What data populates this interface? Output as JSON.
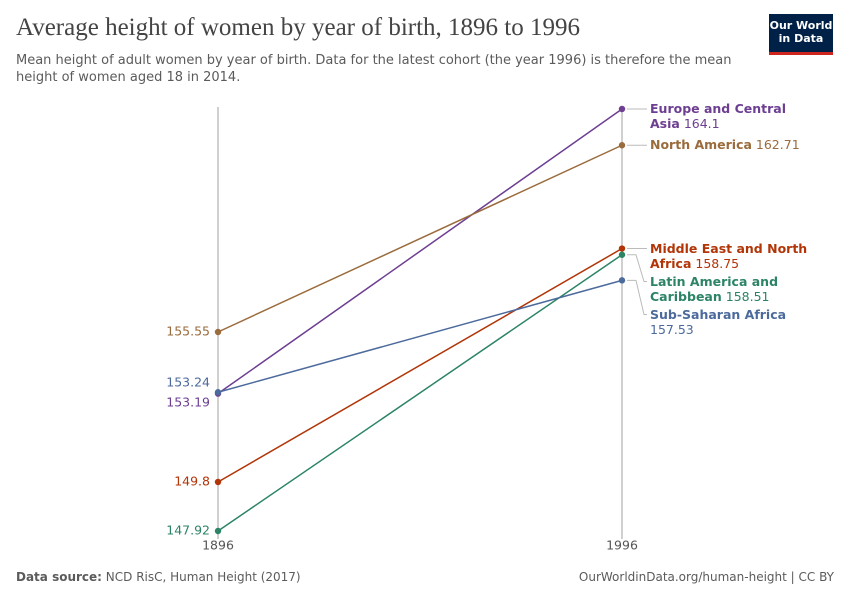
{
  "chart_data": {
    "type": "slope",
    "title": "Average height of women by year of birth, 1896 to 1996",
    "subtitle": "Mean height of adult women by year of birth. Data for the latest cohort (the year 1996) is therefore the mean height of women aged 18 in 2014.",
    "logo": [
      "Our World",
      "in Data"
    ],
    "source_label": "Data source:",
    "source": "NCD RisC, Human Height (2017)",
    "credit": "OurWorldinData.org/human-height | CC BY",
    "categories": [
      "1896",
      "1996"
    ],
    "series": [
      {
        "name": "Europe and Central Asia",
        "color": "#6d3e91",
        "values": [
          153.19,
          164.1
        ]
      },
      {
        "name": "North America",
        "color": "#9a6b3c",
        "values": [
          155.55,
          162.71
        ]
      },
      {
        "name": "Middle East and North Africa",
        "color": "#b13507",
        "values": [
          149.8,
          158.75
        ]
      },
      {
        "name": "Latin America and Caribbean",
        "color": "#2c8465",
        "values": [
          147.92,
          158.51
        ]
      },
      {
        "name": "Sub-Saharan Africa",
        "color": "#4c6a9c",
        "values": [
          153.24,
          157.53
        ]
      }
    ]
  }
}
